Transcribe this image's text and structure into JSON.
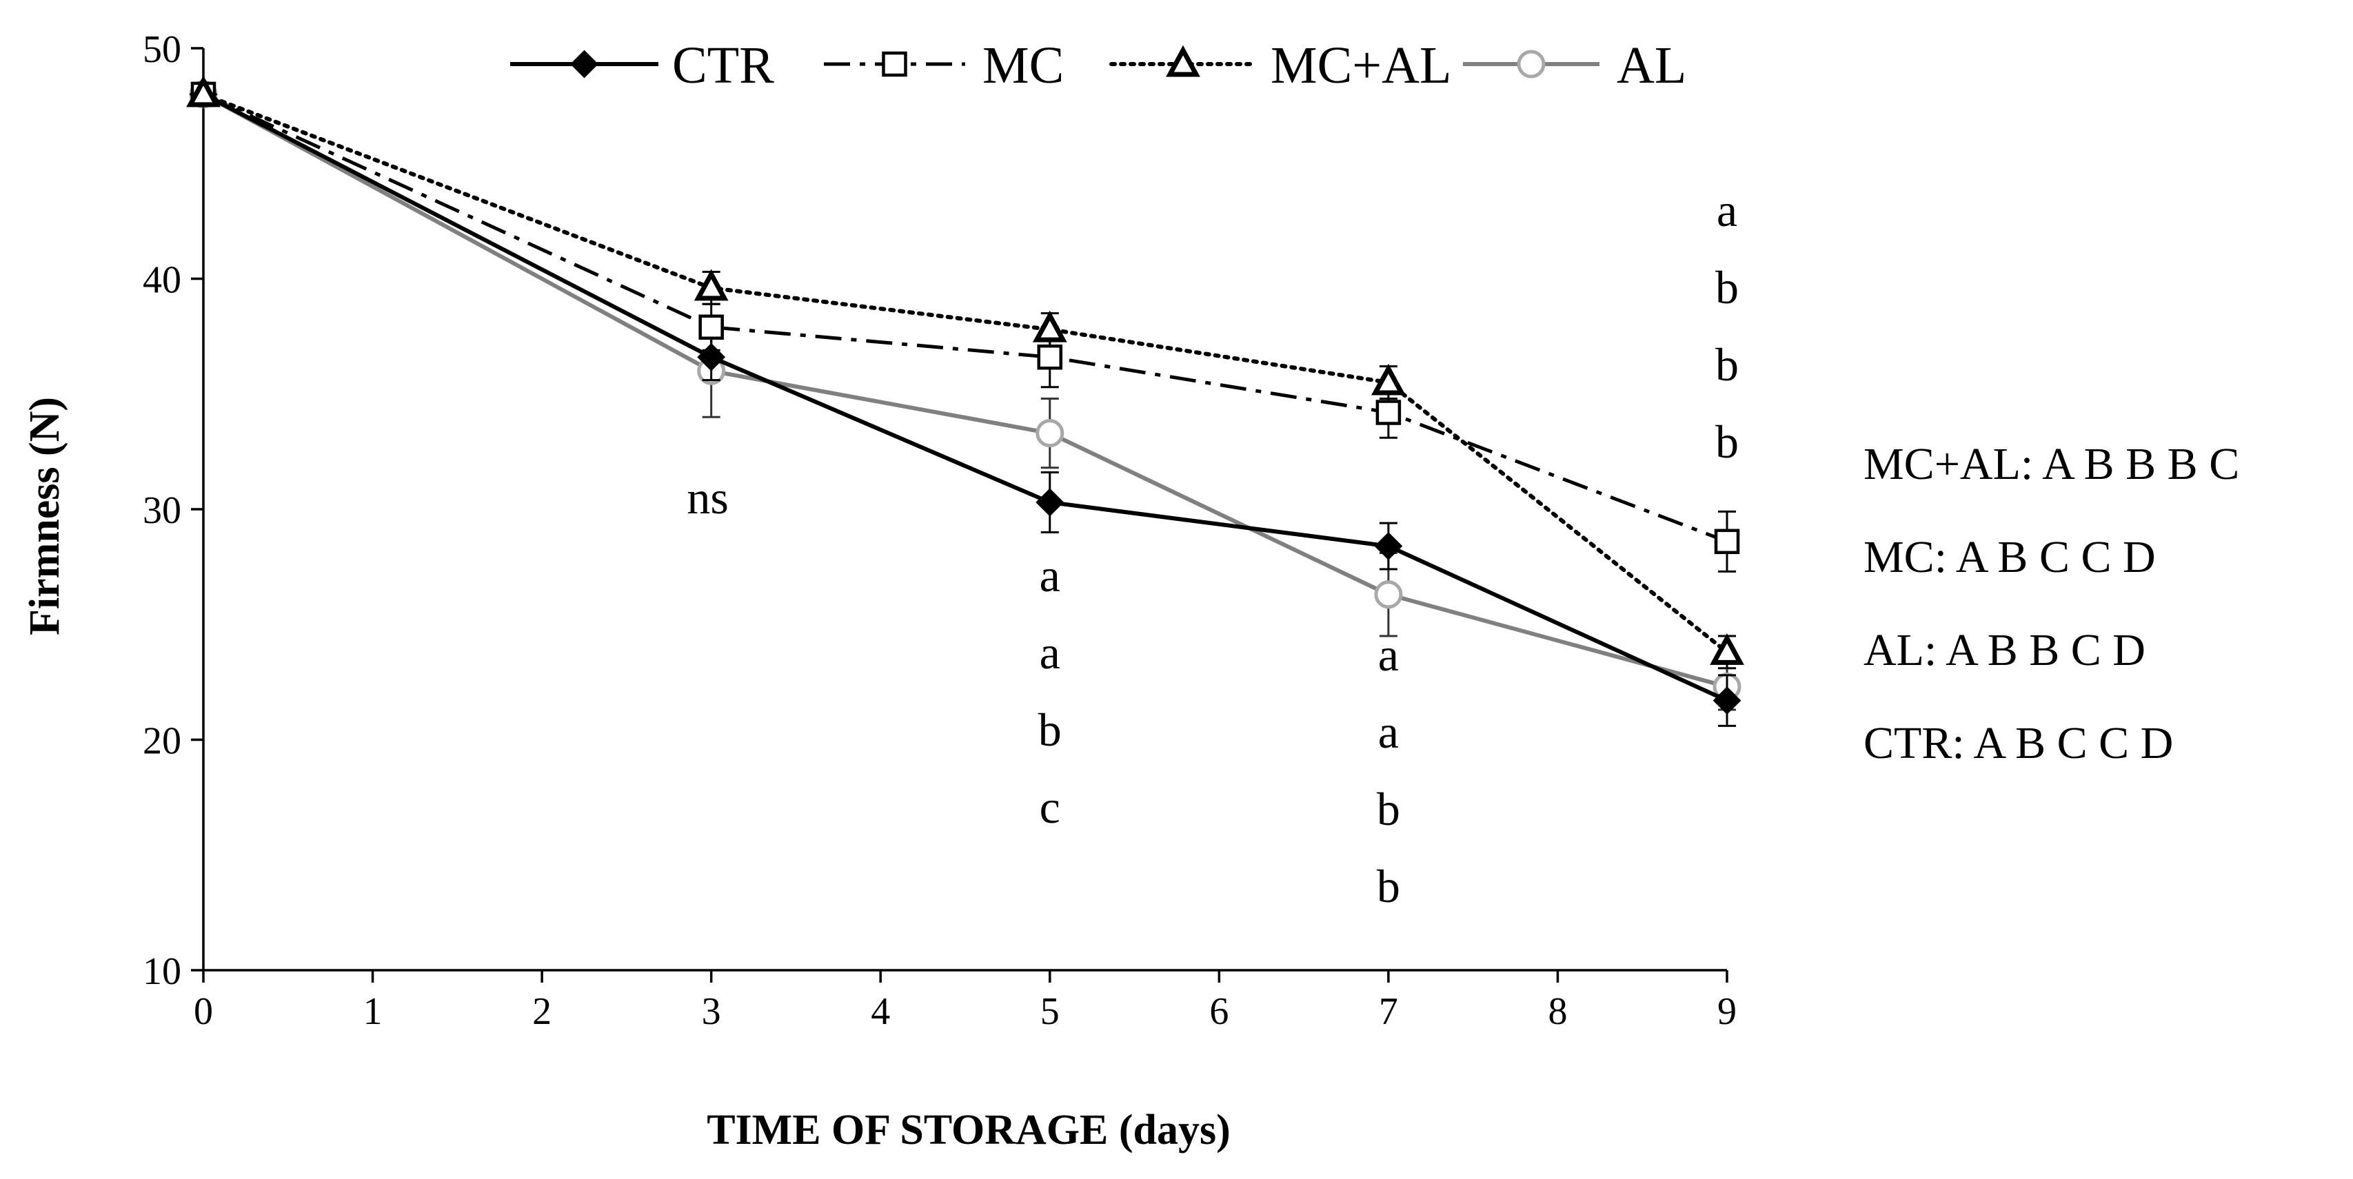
{
  "chart_data": {
    "type": "line",
    "xlabel": "TIME OF STORAGE (days)",
    "ylabel": "Firmness (N)",
    "xlim": [
      0,
      9
    ],
    "ylim": [
      10,
      50
    ],
    "xticks": [
      0,
      1,
      2,
      3,
      4,
      5,
      6,
      7,
      8,
      9
    ],
    "yticks": [
      10,
      20,
      30,
      40,
      50
    ],
    "grid": false,
    "legend_position": "top",
    "x": [
      0,
      3,
      5,
      7,
      9
    ],
    "series": [
      {
        "name": "CTR",
        "values": [
          48.0,
          36.6,
          30.3,
          28.4,
          21.7
        ],
        "errors": [
          0,
          1.0,
          1.3,
          1.0,
          1.1
        ],
        "color": "#000000",
        "marker": "diamond",
        "dash": "solid"
      },
      {
        "name": "MC",
        "values": [
          48.0,
          37.9,
          36.6,
          34.2,
          28.6
        ],
        "errors": [
          0,
          1.0,
          1.3,
          1.1,
          1.3
        ],
        "color": "#000000",
        "marker": "open-square",
        "dash": "dashdot"
      },
      {
        "name": "MC+AL",
        "values": [
          48.0,
          39.6,
          37.8,
          35.5,
          23.8
        ],
        "errors": [
          0,
          0.7,
          0.7,
          0.7,
          0.7
        ],
        "color": "#000000",
        "marker": "open-triangle",
        "dash": "dotted"
      },
      {
        "name": "AL",
        "values": [
          48.0,
          36.0,
          33.3,
          26.3,
          22.3
        ],
        "errors": [
          0,
          2.0,
          1.5,
          1.8,
          1.0
        ],
        "color": "#808080",
        "marker": "open-circle",
        "dash": "solid"
      }
    ],
    "annotations": [
      {
        "x": 3,
        "letters": [
          "ns"
        ]
      },
      {
        "x": 5,
        "letters": [
          "a",
          "a",
          "b",
          "c"
        ]
      },
      {
        "x": 7,
        "letters": [
          "a",
          "a",
          "b",
          "b"
        ]
      },
      {
        "x": 9,
        "letters": [
          "a",
          "b",
          "b",
          "b"
        ]
      }
    ],
    "side_notes": [
      "MC+AL: A B B B C",
      "MC: A B C C D",
      "AL: A B B C D",
      "CTR: A B C C D"
    ]
  }
}
